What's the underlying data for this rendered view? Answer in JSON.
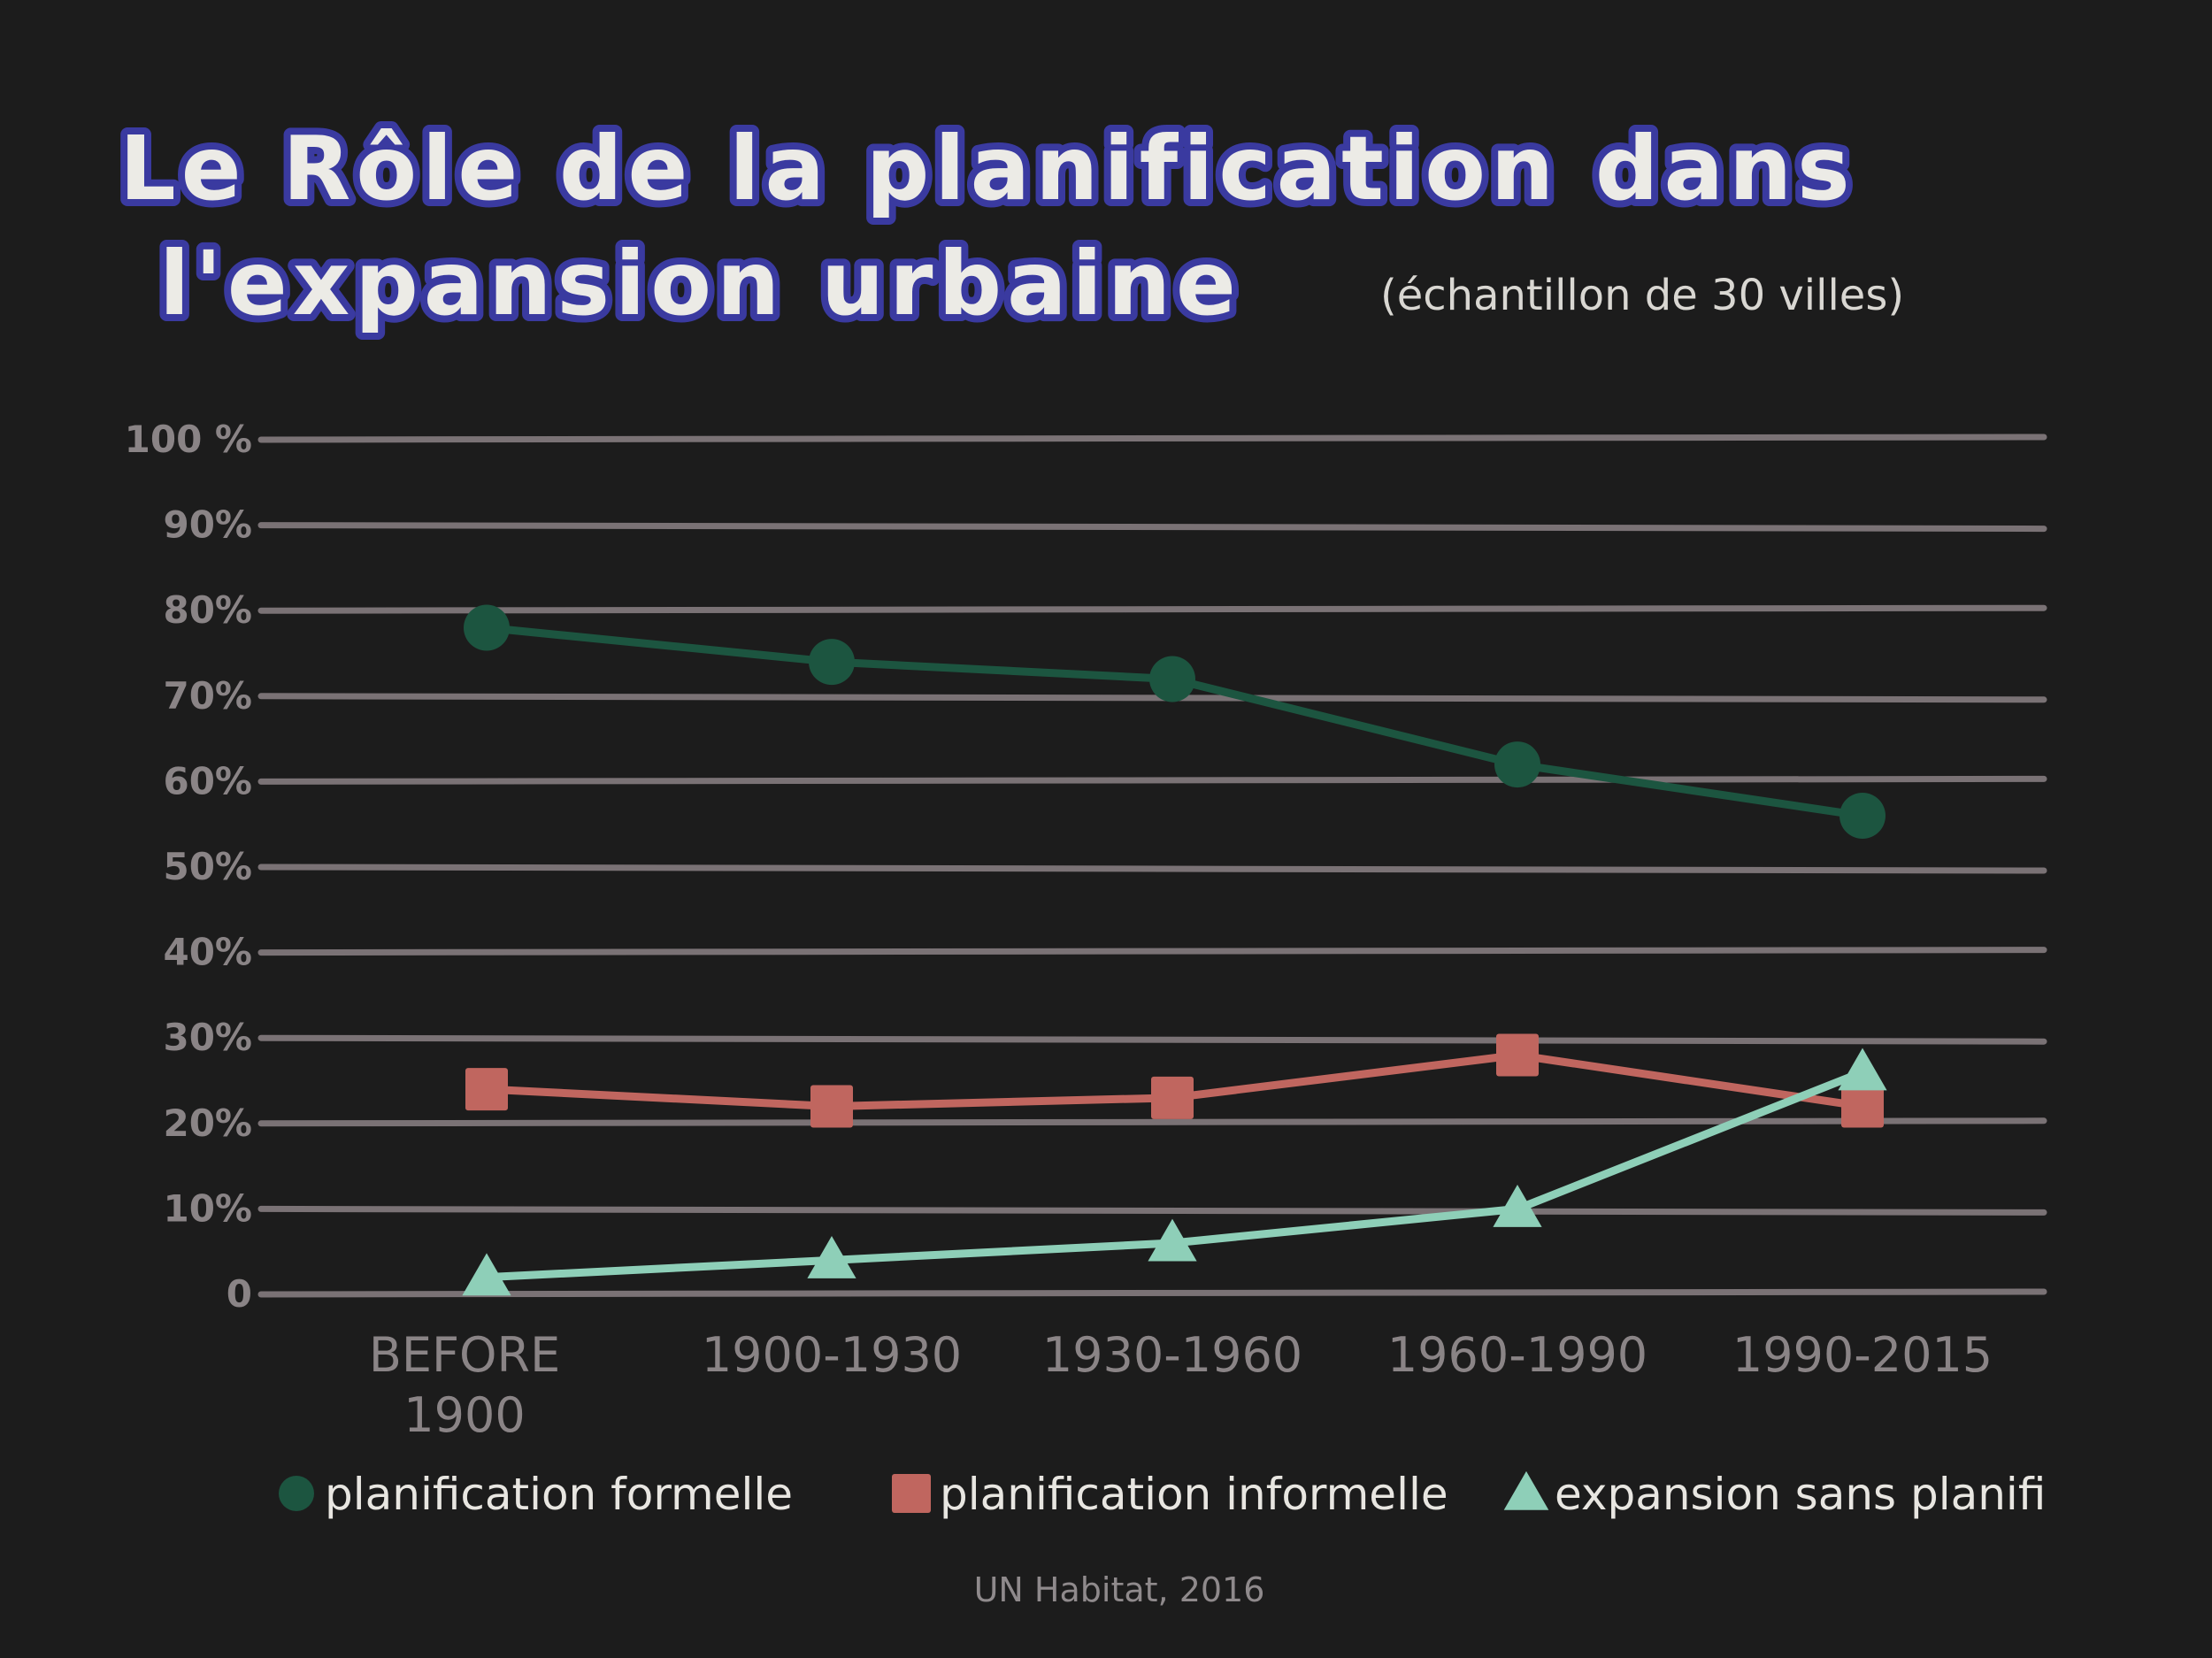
{
  "title_line1": "Le Rôle de la planification dans",
  "title_line2": "l'expansion urbaine",
  "subtitle": "(échantillon de 30 villes)",
  "source": "UN Habitat, 2016",
  "y_tick_labels": [
    "0",
    "10%",
    "20%",
    "30%",
    "40%",
    "50%",
    "60%",
    "70%",
    "80%",
    "90%",
    "100 %"
  ],
  "colors": {
    "background": "#1c1c1c",
    "grid": "#7a7275",
    "formelle": "#1c5540",
    "informelle": "#c0665f",
    "sans": "#8ecfb8",
    "title_outline": "#3a3aa0"
  },
  "chart_data": {
    "type": "line",
    "title": "Le Rôle de la planification dans l'expansion urbaine",
    "subtitle": "(échantillon de 30 villes)",
    "categories": [
      [
        "BEFORE",
        "1900"
      ],
      [
        "1900-1930"
      ],
      [
        "1930-1960"
      ],
      [
        "1960-1990"
      ],
      [
        "1990-2015"
      ]
    ],
    "ylim": [
      0,
      100
    ],
    "grid": true,
    "legend_position": "bottom",
    "series": [
      {
        "name": "planification formelle",
        "marker": "circle",
        "color": "#1c5540",
        "values": [
          78,
          74,
          72,
          62,
          56
        ]
      },
      {
        "name": "planification informelle",
        "marker": "square",
        "color": "#c0665f",
        "values": [
          24,
          22,
          23,
          28,
          22
        ]
      },
      {
        "name": "expansion sans planifi",
        "marker": "triangle",
        "color": "#8ecfb8",
        "values": [
          2,
          4,
          6,
          10,
          26
        ]
      }
    ]
  }
}
